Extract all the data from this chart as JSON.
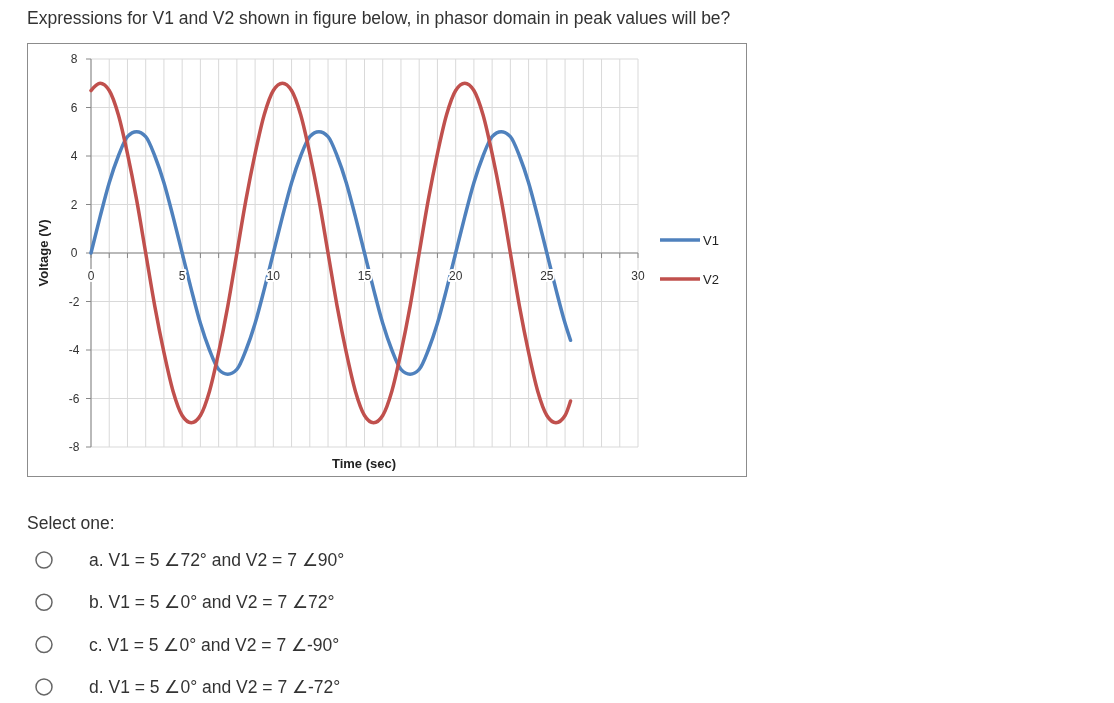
{
  "chart_data": {
    "type": "line",
    "title": "Expressions for V1 and V2 shown in figure below, in phasor domain in peak values will be?",
    "xlabel": "Time (sec)",
    "ylabel": "Voltage (V)",
    "x": [
      0,
      0.5,
      1,
      1.5,
      2,
      2.5,
      3,
      3.5,
      4,
      4.5,
      5,
      5.5,
      6,
      6.5,
      7,
      7.5,
      8,
      8.5,
      9,
      9.5,
      10,
      10.5,
      11,
      11.5,
      12,
      12.5,
      13,
      13.5,
      14,
      14.5,
      15,
      15.5,
      16,
      16.5,
      17,
      17.5,
      18,
      18.5,
      19,
      19.5,
      20,
      20.5,
      21,
      21.5,
      22,
      22.5,
      23,
      23.5,
      24,
      24.5,
      25,
      25.5,
      26,
      26.3
    ],
    "series": [
      {
        "name": "V1",
        "color": "#4f81bd",
        "values": [
          0,
          1.5,
          2.9,
          4.0,
          4.8,
          5.0,
          4.8,
          4.0,
          2.9,
          1.5,
          0,
          -1.5,
          -2.9,
          -4.0,
          -4.8,
          -5.0,
          -4.8,
          -4.0,
          -2.9,
          -1.5,
          0,
          1.5,
          2.9,
          4.0,
          4.8,
          5.0,
          4.8,
          4.0,
          2.9,
          1.5,
          0,
          -1.5,
          -2.9,
          -4.0,
          -4.8,
          -5.0,
          -4.8,
          -4.0,
          -2.9,
          -1.5,
          0,
          1.5,
          2.9,
          4.0,
          4.8,
          5.0,
          4.8,
          4.0,
          2.9,
          1.5,
          0,
          -1.5,
          -2.9,
          -3.6
        ]
      },
      {
        "name": "V2",
        "color": "#c0504d",
        "values": [
          6.7,
          7.0,
          6.7,
          5.7,
          4.1,
          2.2,
          0,
          -2.2,
          -4.1,
          -5.7,
          -6.7,
          -7.0,
          -6.7,
          -5.7,
          -4.1,
          -2.2,
          0,
          2.2,
          4.1,
          5.7,
          6.7,
          7.0,
          6.7,
          5.7,
          4.1,
          2.2,
          0,
          -2.2,
          -4.1,
          -5.7,
          -6.7,
          -7.0,
          -6.7,
          -5.7,
          -4.1,
          -2.2,
          0,
          2.2,
          4.1,
          5.7,
          6.7,
          7.0,
          6.7,
          5.7,
          4.1,
          2.2,
          0,
          -2.2,
          -4.1,
          -5.7,
          -6.7,
          -7.0,
          -6.7,
          -6.1
        ]
      }
    ],
    "xlim": [
      0,
      30
    ],
    "xticks": [
      0,
      {
        "value": 1,
        "label": null
      },
      {
        "value": 2,
        "label": null
      },
      {
        "value": 3,
        "label": null
      },
      {
        "value": 4,
        "label": null
      },
      5,
      {
        "value": 6,
        "label": null
      },
      {
        "value": 7,
        "label": null
      },
      {
        "value": 8,
        "label": null
      },
      {
        "value": 9,
        "label": null
      },
      10,
      {
        "value": 11,
        "label": null
      },
      {
        "value": 12,
        "label": null
      },
      {
        "value": 13,
        "label": null
      },
      {
        "value": 14,
        "label": null
      },
      15,
      {
        "value": 16,
        "label": null
      },
      {
        "value": 17,
        "label": null
      },
      {
        "value": 18,
        "label": null
      },
      {
        "value": 19,
        "label": null
      },
      20,
      {
        "value": 21,
        "label": null
      },
      {
        "value": 22,
        "label": null
      },
      {
        "value": 23,
        "label": null
      },
      {
        "value": 24,
        "label": null
      },
      25,
      {
        "value": 26,
        "label": null
      },
      {
        "value": 27,
        "label": null
      },
      {
        "value": 28,
        "label": null
      },
      {
        "value": 29,
        "label": null
      },
      30
    ],
    "ylim": [
      -8,
      8
    ],
    "yticks": [
      -8,
      -6,
      -4,
      -2,
      0,
      2,
      4,
      6,
      8
    ],
    "grid": true,
    "legend": "right",
    "marker": "none",
    "line_style": "solid",
    "annotations": [
      "Select one:",
      "a. V1 = 5 ∠72° and V2 = 7 ∠90°",
      "b. V1 = 5 ∠0° and V2 = 7 ∠72°",
      "c. V1 = 5 ∠0° and V2 = 7 ∠-90°",
      "d. V1 = 5 ∠0° and V2 = 7 ∠-72°"
    ]
  }
}
